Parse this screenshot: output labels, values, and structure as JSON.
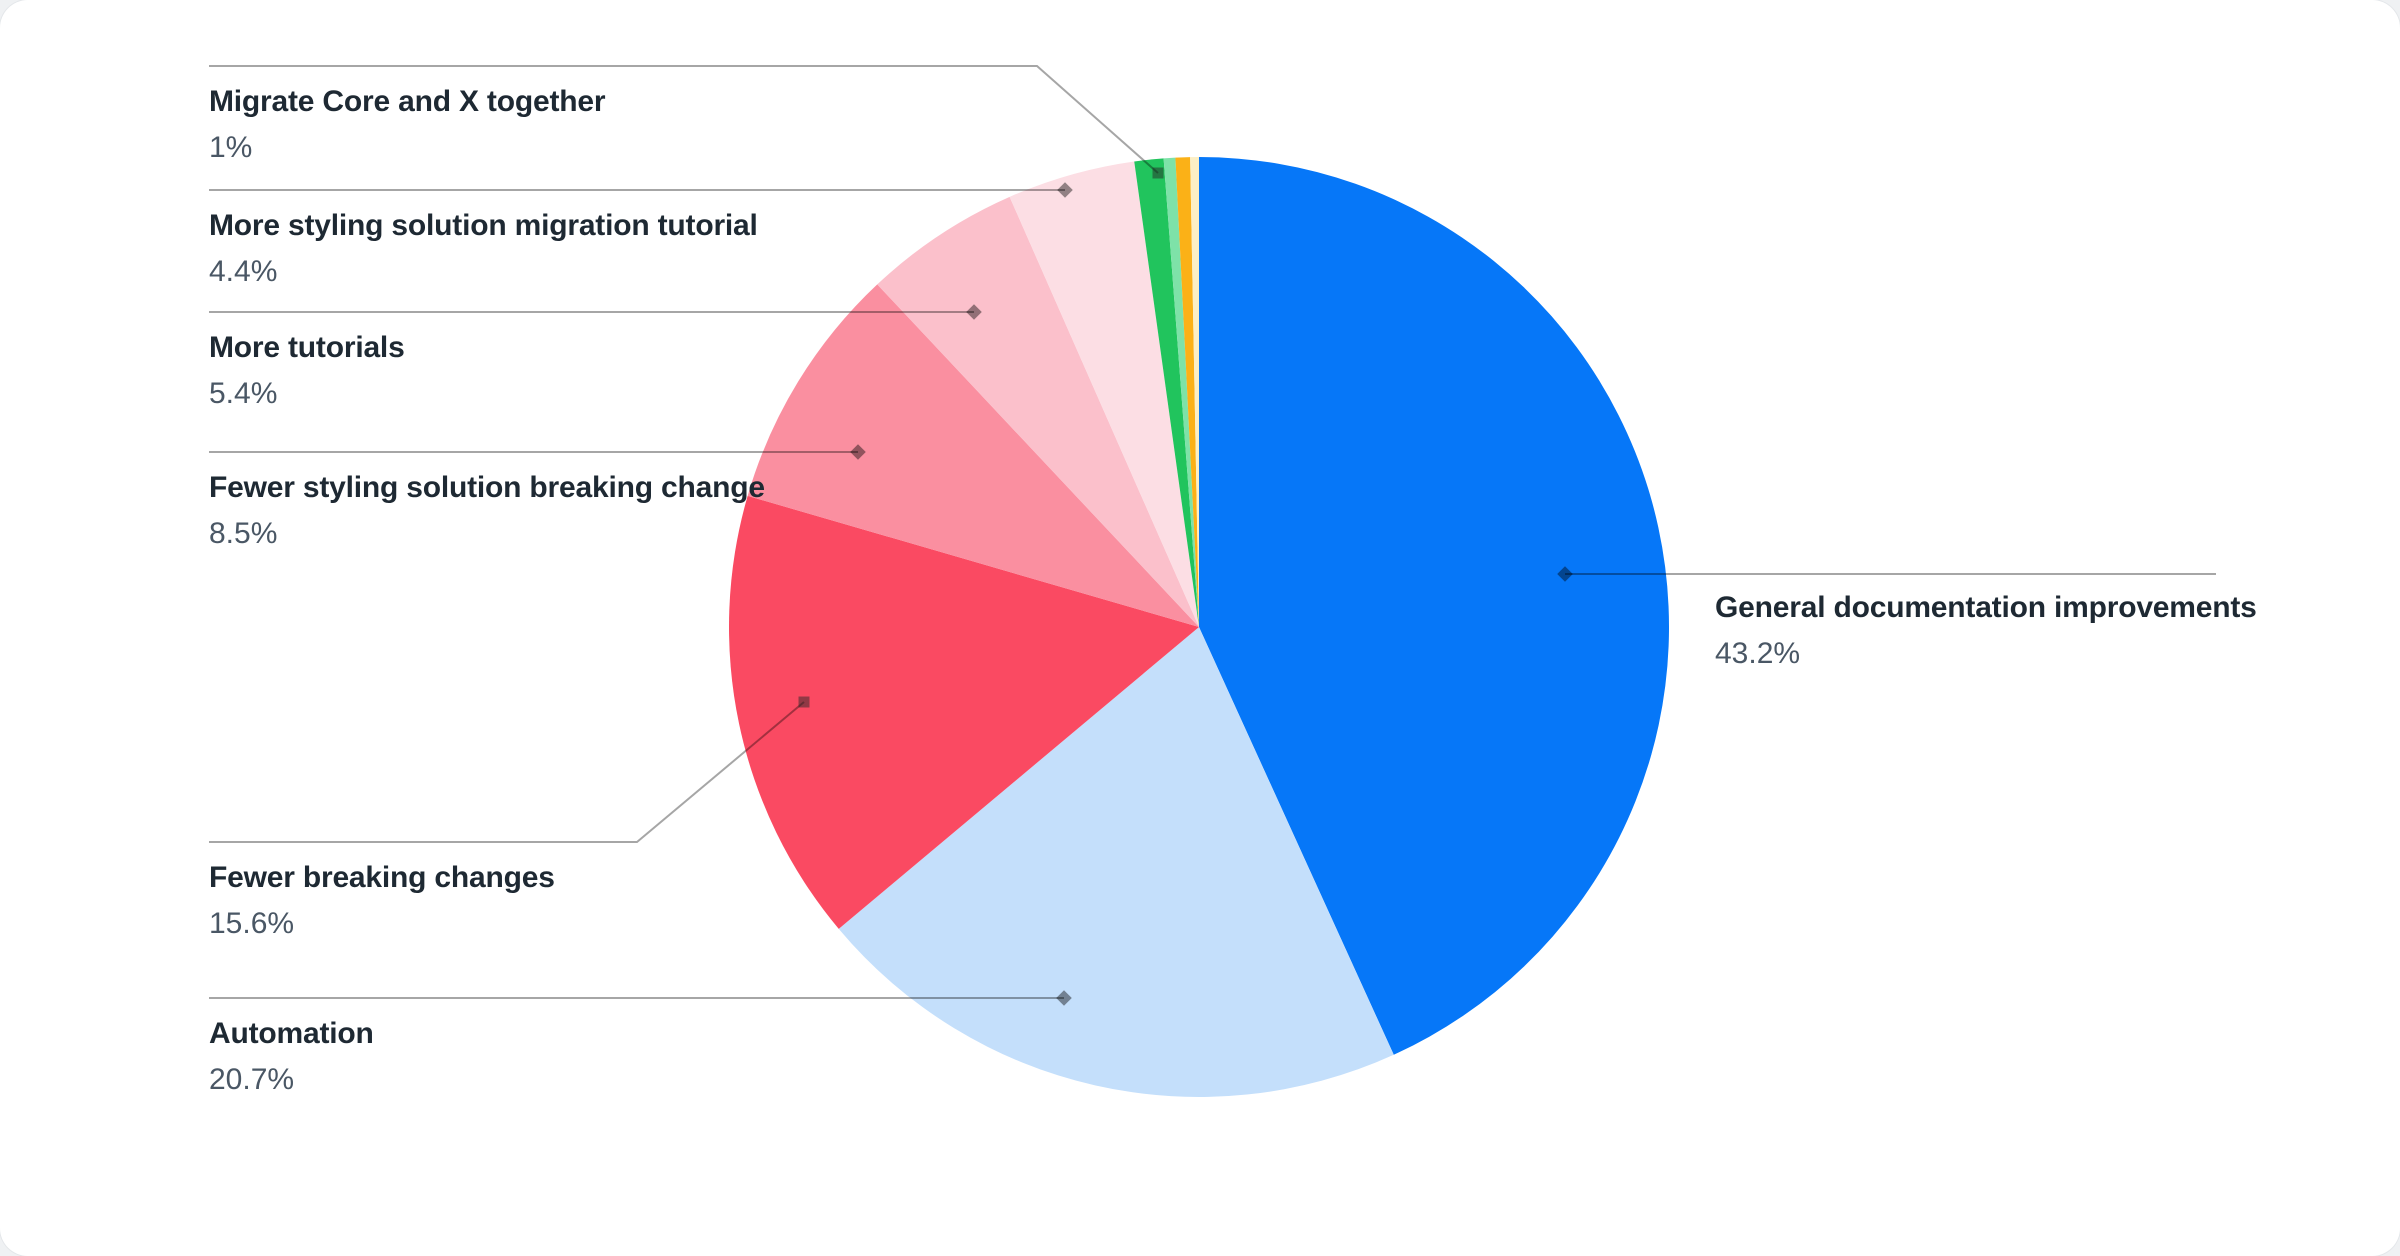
{
  "chart_data": {
    "type": "pie",
    "title": "",
    "direction": "clockwise",
    "start_angle_deg": 0,
    "legend_position": "callout-labels",
    "slices": [
      {
        "label": "General documentation improvements",
        "value": 43.2,
        "display_value": "43.2%",
        "color": "#0677F8"
      },
      {
        "label": "Automation",
        "value": 20.7,
        "display_value": "20.7%",
        "color": "#C4DFFB"
      },
      {
        "label": "Fewer breaking changes",
        "value": 15.6,
        "display_value": "15.6%",
        "color": "#FA4A62"
      },
      {
        "label": "Fewer styling solution breaking change",
        "value": 8.5,
        "display_value": "8.5%",
        "color": "#FA8FA0"
      },
      {
        "label": "More tutorials",
        "value": 5.4,
        "display_value": "5.4%",
        "color": "#FBC0CB"
      },
      {
        "label": "More styling solution migration tutorial",
        "value": 4.4,
        "display_value": "4.4%",
        "color": "#FCDEE4"
      },
      {
        "label": "Migrate Core and X together",
        "value": 1.0,
        "display_value": "1%",
        "color": "#21C45D"
      },
      {
        "label": "",
        "value": 0.4,
        "color": "#7EE2A8"
      },
      {
        "label": "",
        "value": 0.5,
        "color": "#FBB117"
      },
      {
        "label": "",
        "value": 0.3,
        "color": "#FCEFC5"
      }
    ]
  },
  "colors": {
    "leader_line": "rgba(0,0,0,0.35)",
    "diamond_marker": "rgba(0,0,0,0.42)",
    "square_marker": "rgba(40,40,40,0.5)",
    "title_text": "#1E2933",
    "value_text": "#4A5765",
    "card_bg": "#FFFFFF"
  }
}
